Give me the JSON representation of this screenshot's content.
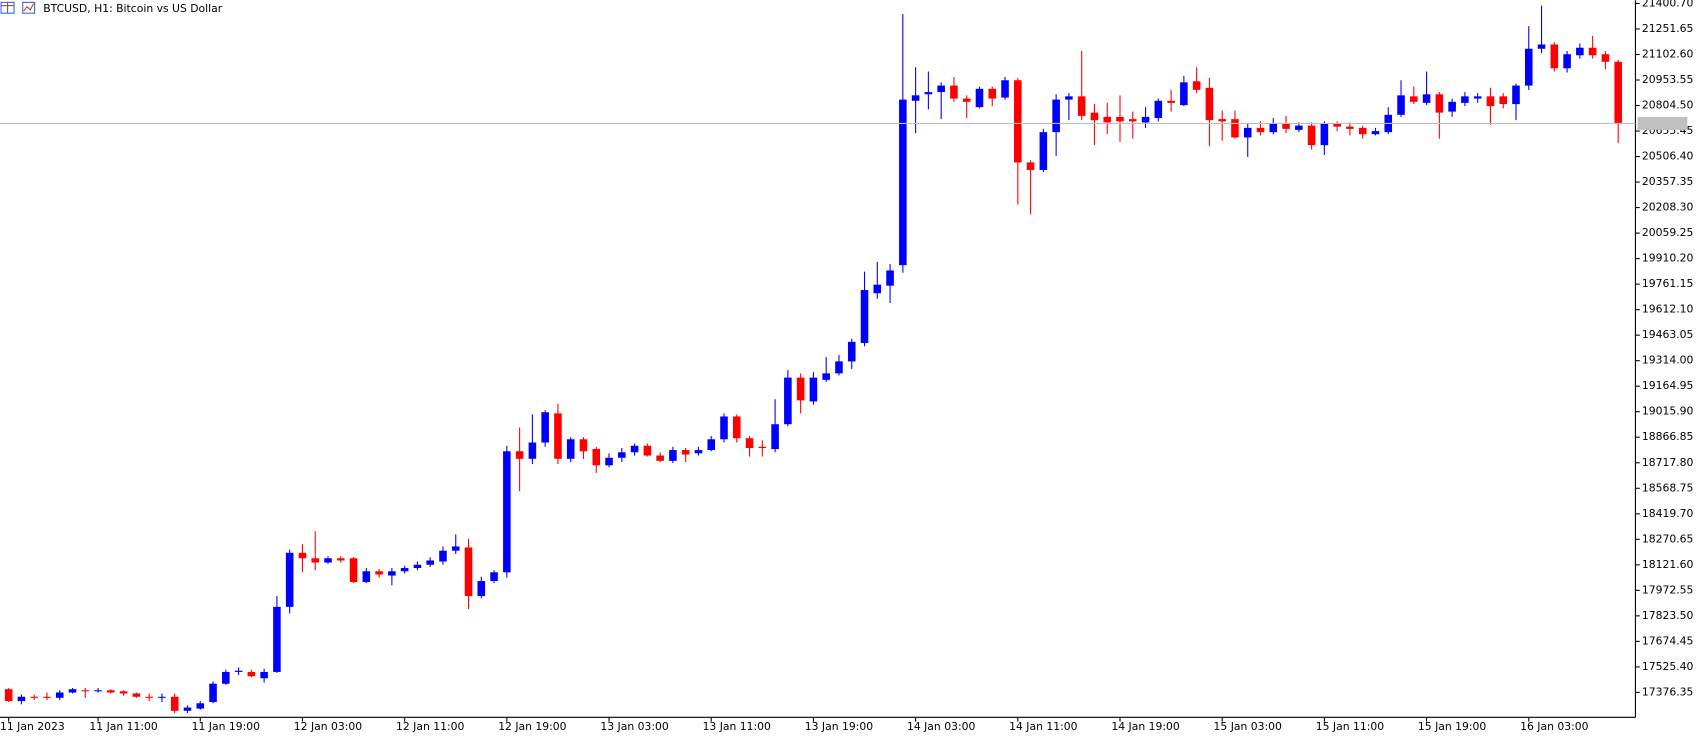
{
  "chart_data": {
    "type": "candlestick",
    "title": "BTCUSD, H1:  Bitcoin vs US Dollar",
    "up_color": "#0000ff",
    "down_color": "#ff0000",
    "categories": [
      "11 Jan 2023",
      null,
      null,
      null,
      null,
      null,
      null,
      "11 Jan 11:00",
      null,
      null,
      null,
      null,
      null,
      null,
      null,
      "11 Jan 19:00",
      null,
      null,
      null,
      null,
      null,
      null,
      null,
      "12 Jan 03:00",
      null,
      null,
      null,
      null,
      null,
      null,
      null,
      "12 Jan 11:00",
      null,
      null,
      null,
      null,
      null,
      null,
      null,
      "12 Jan 19:00",
      null,
      null,
      null,
      null,
      null,
      null,
      null,
      "13 Jan 03:00",
      null,
      null,
      null,
      null,
      null,
      null,
      null,
      "13 Jan 11:00",
      null,
      null,
      null,
      null,
      null,
      null,
      null,
      "13 Jan 19:00",
      null,
      null,
      null,
      null,
      null,
      null,
      null,
      "14 Jan 03:00",
      null,
      null,
      null,
      null,
      null,
      null,
      null,
      "14 Jan 11:00",
      null,
      null,
      null,
      null,
      null,
      null,
      null,
      "14 Jan 19:00",
      null,
      null,
      null,
      null,
      null,
      null,
      null,
      "15 Jan 03:00",
      null,
      null,
      null,
      null,
      null,
      null,
      null,
      "15 Jan 11:00",
      null,
      null,
      null,
      null,
      null,
      null,
      null,
      "15 Jan 19:00",
      null,
      null,
      null,
      null,
      null,
      null,
      null,
      "16 Jan 03:00",
      null,
      null,
      null,
      null,
      null,
      null,
      null
    ],
    "open": [
      17395,
      17326,
      17351,
      17351,
      17345,
      17376,
      17389,
      17383,
      17389,
      17383,
      17370,
      17351,
      17345,
      17351,
      17269,
      17282,
      17320,
      17427,
      17496,
      17496,
      17459,
      17496,
      17876,
      18192,
      18160,
      18135,
      18160,
      18160,
      18021,
      18084,
      18059,
      18084,
      18103,
      18122,
      18141,
      18204,
      18223,
      17939,
      18027,
      18078,
      18785,
      18741,
      18836,
      19006,
      18741,
      18855,
      18798,
      18703,
      18747,
      18779,
      18817,
      18760,
      18729,
      18792,
      18773,
      18792,
      18855,
      18988,
      18861,
      18811,
      18798,
      18943,
      19215,
      19076,
      19202,
      19240,
      19310,
      19417,
      19708,
      19752,
      19872,
      20832,
      20870,
      20883,
      20921,
      20845,
      20795,
      20902,
      20851,
      20952,
      20472,
      20428,
      20649,
      20839,
      20858,
      20763,
      20738,
      20738,
      20725,
      20706,
      20731,
      20832,
      20807,
      20946,
      20908,
      20725,
      20725,
      20618,
      20674,
      20649,
      20700,
      20662,
      20687,
      20573,
      20700,
      20681,
      20674,
      20637,
      20649,
      20750,
      20858,
      20820,
      20870,
      20769,
      20820,
      20845,
      20858,
      20858,
      20813,
      20921,
      21136,
      21161,
      21022,
      21098,
      21142,
      21104,
      21060
    ],
    "high": [
      17402,
      17364,
      17364,
      17376,
      17389,
      17402,
      17402,
      17402,
      17395,
      17389,
      17376,
      17370,
      17370,
      17370,
      17301,
      17326,
      17440,
      17509,
      17522,
      17509,
      17515,
      17939,
      18210,
      18242,
      18318,
      18172,
      18172,
      18166,
      18103,
      18097,
      18103,
      18116,
      18141,
      18166,
      18229,
      18299,
      18274,
      18052,
      18090,
      18817,
      18924,
      19000,
      19025,
      19063,
      18867,
      18867,
      18811,
      18773,
      18804,
      18830,
      18830,
      18779,
      18811,
      18804,
      18811,
      18874,
      19006,
      19000,
      18874,
      18849,
      19089,
      19259,
      19240,
      19247,
      19335,
      19348,
      19443,
      19834,
      19891,
      19878,
      21338,
      21028,
      21003,
      20940,
      20971,
      20864,
      20915,
      20915,
      20971,
      20965,
      20485,
      20668,
      20870,
      20877,
      21123,
      20813,
      20820,
      20864,
      20769,
      20795,
      20845,
      20896,
      20978,
      21028,
      20965,
      20776,
      20776,
      20700,
      20712,
      20731,
      20744,
      20706,
      20706,
      20712,
      20712,
      20706,
      20687,
      20674,
      20795,
      20952,
      20915,
      21003,
      20883,
      20845,
      20883,
      20877,
      20908,
      20877,
      20933,
      21268,
      21388,
      21174,
      21123,
      21167,
      21211,
      21123,
      21072
    ],
    "low": [
      17320,
      17307,
      17332,
      17332,
      17332,
      17370,
      17345,
      17376,
      17370,
      17357,
      17345,
      17326,
      17320,
      17256,
      17256,
      17275,
      17313,
      17421,
      17478,
      17465,
      17433,
      17490,
      17838,
      18078,
      18090,
      18128,
      18135,
      18015,
      18015,
      18046,
      18002,
      18071,
      18090,
      18109,
      18122,
      18185,
      17863,
      17926,
      18015,
      18046,
      18552,
      18710,
      18811,
      18710,
      18722,
      18741,
      18659,
      18691,
      18722,
      18760,
      18754,
      18722,
      18716,
      18722,
      18760,
      18785,
      18836,
      18836,
      18754,
      18754,
      18779,
      18931,
      19006,
      19057,
      19190,
      19228,
      19266,
      19398,
      19676,
      19651,
      19828,
      20643,
      20782,
      20725,
      20826,
      20731,
      20788,
      20801,
      20839,
      20226,
      20169,
      20415,
      20510,
      20719,
      20719,
      20573,
      20637,
      20592,
      20611,
      20674,
      20712,
      20769,
      20801,
      20877,
      20567,
      20599,
      20611,
      20504,
      20630,
      20637,
      20643,
      20649,
      20548,
      20516,
      20655,
      20630,
      20611,
      20630,
      20637,
      20738,
      20813,
      20807,
      20611,
      20738,
      20801,
      20820,
      20693,
      20788,
      20719,
      20896,
      21110,
      21003,
      20997,
      21079,
      21079,
      21016,
      20586
    ],
    "close": [
      17326,
      17351,
      17345,
      17345,
      17376,
      17395,
      17383,
      17389,
      17376,
      17370,
      17351,
      17345,
      17351,
      17269,
      17288,
      17313,
      17427,
      17496,
      17503,
      17471,
      17496,
      17876,
      18192,
      18160,
      18135,
      18160,
      18147,
      18021,
      18084,
      18065,
      18084,
      18103,
      18122,
      18147,
      18204,
      18229,
      17939,
      18027,
      18078,
      18785,
      18741,
      18836,
      19013,
      18741,
      18855,
      18785,
      18703,
      18747,
      18779,
      18817,
      18760,
      18729,
      18792,
      18766,
      18792,
      18855,
      18988,
      18861,
      18804,
      18804,
      18943,
      19215,
      19082,
      19215,
      19240,
      19310,
      19424,
      19727,
      19758,
      19841,
      20839,
      20864,
      20883,
      20921,
      20845,
      20826,
      20902,
      20845,
      20952,
      20472,
      20428,
      20649,
      20839,
      20858,
      20744,
      20719,
      20706,
      20712,
      20712,
      20738,
      20832,
      20820,
      20940,
      20896,
      20719,
      20712,
      20618,
      20674,
      20649,
      20700,
      20668,
      20687,
      20573,
      20700,
      20681,
      20668,
      20637,
      20655,
      20750,
      20864,
      20826,
      20870,
      20763,
      20826,
      20858,
      20858,
      20801,
      20813,
      20921,
      21136,
      21161,
      21022,
      21104,
      21142,
      21098,
      21060,
      20700
    ],
    "ylim": [
      17230.85,
      21419.65
    ],
    "yticks": [
      {
        "value": 21400.7,
        "label": "21400.70"
      },
      21251.65,
      {
        "value": 21102.6,
        "label": "21102.60"
      },
      20953.55,
      {
        "value": 20804.5,
        "label": "20804.50"
      },
      20655.45,
      {
        "value": 20506.4,
        "label": "20506.40"
      },
      20357.35,
      {
        "value": 20208.3,
        "label": "20208.30"
      },
      20059.25,
      {
        "value": 19910.2,
        "label": "19910.20"
      },
      19761.15,
      {
        "value": 19612.1,
        "label": "19612.10"
      },
      19463.05,
      {
        "value": 19314,
        "label": "19314.00"
      },
      19164.95,
      {
        "value": 19015.9,
        "label": "19015.90"
      },
      18866.85,
      {
        "value": 18717.8,
        "label": "18717.80"
      },
      18568.75,
      {
        "value": 18419.7,
        "label": "18419.70"
      },
      18270.65,
      {
        "value": 18121.6,
        "label": "18121.60"
      },
      17972.55,
      {
        "value": 17823.5,
        "label": "17823.50"
      },
      17674.45,
      {
        "value": 17525.4,
        "label": "17525.40"
      },
      17376.35
    ]
  }
}
